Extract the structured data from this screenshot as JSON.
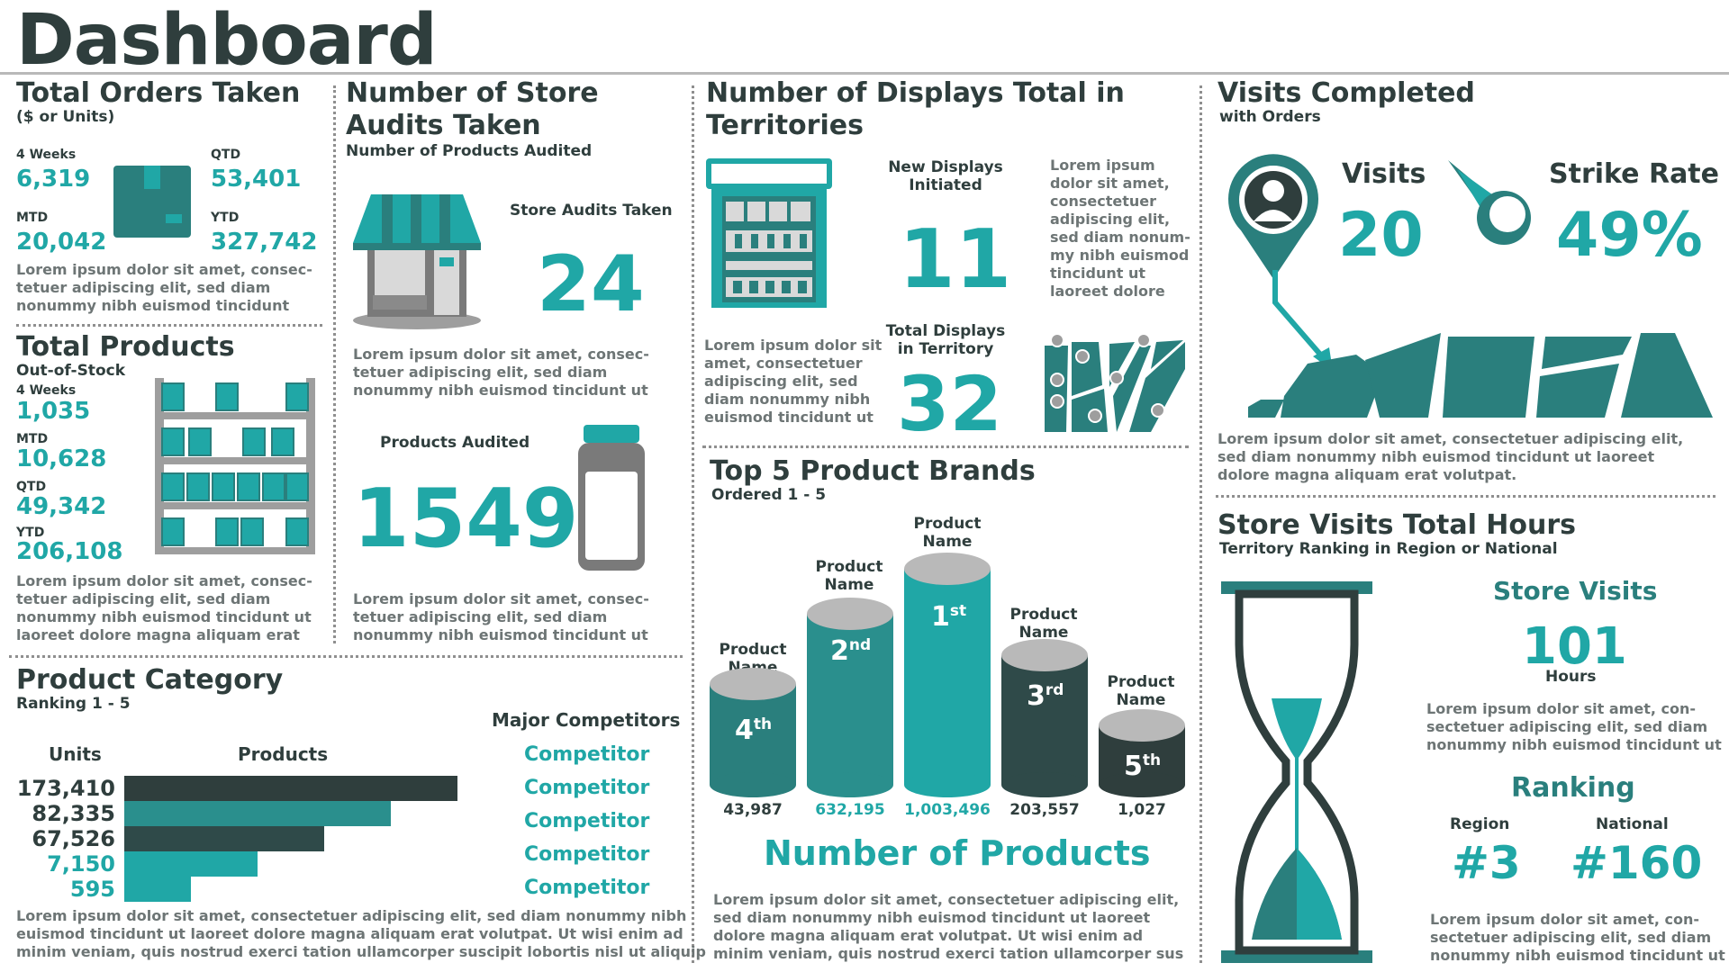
{
  "page": {
    "title": "Dashboard"
  },
  "orders": {
    "title": "Total Orders Taken",
    "subtitle": "($ or Units)",
    "weeks_label": "4 Weeks",
    "weeks_value": "6,319",
    "qtd_label": "QTD",
    "qtd_value": "53,401",
    "mtd_label": "MTD",
    "mtd_value": "20,042",
    "ytd_label": "YTD",
    "ytd_value": "327,742",
    "lorem": [
      "Lorem ipsum dolor sit amet, consec-",
      "tetuer adipiscing elit, sed diam",
      "nonummy nibh euismod tincidunt"
    ]
  },
  "products": {
    "title": "Total Products",
    "subtitle": "Out-of-Stock",
    "weeks_label": "4 Weeks",
    "weeks_value": "1,035",
    "mtd_label": "MTD",
    "mtd_value": "10,628",
    "qtd_label": "QTD",
    "qtd_value": "49,342",
    "ytd_label": "YTD",
    "ytd_value": "206,108",
    "lorem": [
      "Lorem ipsum dolor sit amet, consec-",
      "tetuer adipiscing elit, sed diam",
      "nonummy nibh euismod tincidunt ut",
      "laoreet dolore magna aliquam erat"
    ]
  },
  "audits": {
    "title_line1": "Number of Store",
    "title_line2": "Audits Taken",
    "subtitle": "Number of Products Audited",
    "store_label": "Store Audits Taken",
    "store_value": "24",
    "lorem1": [
      "Lorem ipsum dolor sit amet, consec-",
      "tetuer adipiscing elit, sed diam",
      "nonummy nibh euismod tincidunt ut"
    ],
    "products_label": "Products Audited",
    "products_value": "1549",
    "lorem2": [
      "Lorem ipsum dolor sit amet, consec-",
      "tetuer adipiscing elit, sed diam",
      "nonummy nibh euismod tincidunt ut"
    ]
  },
  "displays": {
    "title_line1": "Number of Displays Total in",
    "title_line2": "Territories",
    "new_label_line1": "New Displays",
    "new_label_line2": "Initiated",
    "new_value": "11",
    "lorem_right": [
      "Lorem ipsum",
      "dolor sit amet,",
      "consectetuer",
      "adipiscing elit,",
      "sed diam nonum-",
      "my nibh euismod",
      "tincidunt ut",
      "laoreet dolore"
    ],
    "lorem_left": [
      "Lorem ipsum dolor sit",
      "amet, consectetuer",
      "adipiscing elit, sed",
      "diam nonummy nibh",
      "euismod tincidunt ut"
    ],
    "total_label_line1": "Total Displays",
    "total_label_line2": "in Territory",
    "total_value": "32"
  },
  "brands": {
    "title": "Top 5 Product Brands",
    "subtitle": "Ordered 1 - 5",
    "items": [
      {
        "name_line1": "Product",
        "name_line2": "Name",
        "rank": "4",
        "suffix": "th",
        "value": "43,987"
      },
      {
        "name_line1": "Product",
        "name_line2": "Name",
        "rank": "2",
        "suffix": "nd",
        "value": "632,195"
      },
      {
        "name_line1": "Product",
        "name_line2": "Name",
        "rank": "1",
        "suffix": "st",
        "value": "1,003,496"
      },
      {
        "name_line1": "Product",
        "name_line2": "Name",
        "rank": "3",
        "suffix": "rd",
        "value": "203,557"
      },
      {
        "name_line1": "Product",
        "name_line2": "Name",
        "rank": "5",
        "suffix": "th",
        "value": "1,027"
      }
    ],
    "footer_title": "Number of Products",
    "lorem": [
      "Lorem ipsum dolor sit amet, consectetuer adipiscing elit,",
      "sed diam nonummy nibh euismod tincidunt ut laoreet",
      "dolore magna aliquam erat volutpat. Ut wisi enim ad",
      "minim veniam, quis nostrud exerci tation ullamcorper sus"
    ]
  },
  "category": {
    "title": "Product Category",
    "subtitle": "Ranking 1 - 5",
    "units_header": "Units",
    "products_header": "Products",
    "competitors_header": "Major Competitors",
    "rows": [
      {
        "units": "173,410",
        "fraction": 1.0,
        "competitor": "Competitor"
      },
      {
        "units": "82,335",
        "fraction": 0.8,
        "competitor": "Competitor"
      },
      {
        "units": "67,526",
        "fraction": 0.6,
        "competitor": "Competitor"
      },
      {
        "units": "7,150",
        "fraction": 0.4,
        "competitor": "Competitor"
      },
      {
        "units": "595",
        "fraction": 0.2,
        "competitor": "Competitor"
      }
    ],
    "lorem": [
      "Lorem ipsum dolor sit amet, consectetuer adipiscing elit, sed diam nonummy nibh",
      "euismod tincidunt ut laoreet dolore magna aliquam erat volutpat. Ut wisi enim ad",
      "minim veniam, quis nostrud exerci tation ullamcorper suscipit lobortis nisl ut aliquip"
    ]
  },
  "visits": {
    "title": "Visits Completed",
    "subtitle": "with Orders",
    "visits_label": "Visits",
    "visits_value": "20",
    "strike_label": "Strike Rate",
    "strike_value": "49%",
    "lorem": [
      "Lorem ipsum dolor sit amet, consectetuer adipiscing elit,",
      "sed diam nonummy nibh euismod tincidunt ut laoreet",
      "dolore magna aliquam erat volutpat."
    ]
  },
  "hours": {
    "title": "Store Visits Total Hours",
    "subtitle": "Territory Ranking in Region or National",
    "store_visits_label": "Store Visits",
    "hours_value": "101",
    "hours_label": "Hours",
    "lorem1": [
      "Lorem ipsum dolor sit amet, con-",
      "sectetuer adipiscing elit, sed diam",
      "nonummy nibh euismod tincidunt ut"
    ],
    "ranking_label": "Ranking",
    "region_label": "Region",
    "region_value": "#3",
    "national_label": "National",
    "national_value": "#160",
    "lorem2": [
      "Lorem ipsum dolor sit amet, con-",
      "sectetuer adipiscing elit, sed diam",
      "nonummy nibh euismod tincidunt ut"
    ]
  },
  "colors": {
    "teal": "#20a7a6",
    "dark": "#2f3e3d",
    "mid": "#2a7f7d",
    "grey": "#b9b9b9"
  }
}
